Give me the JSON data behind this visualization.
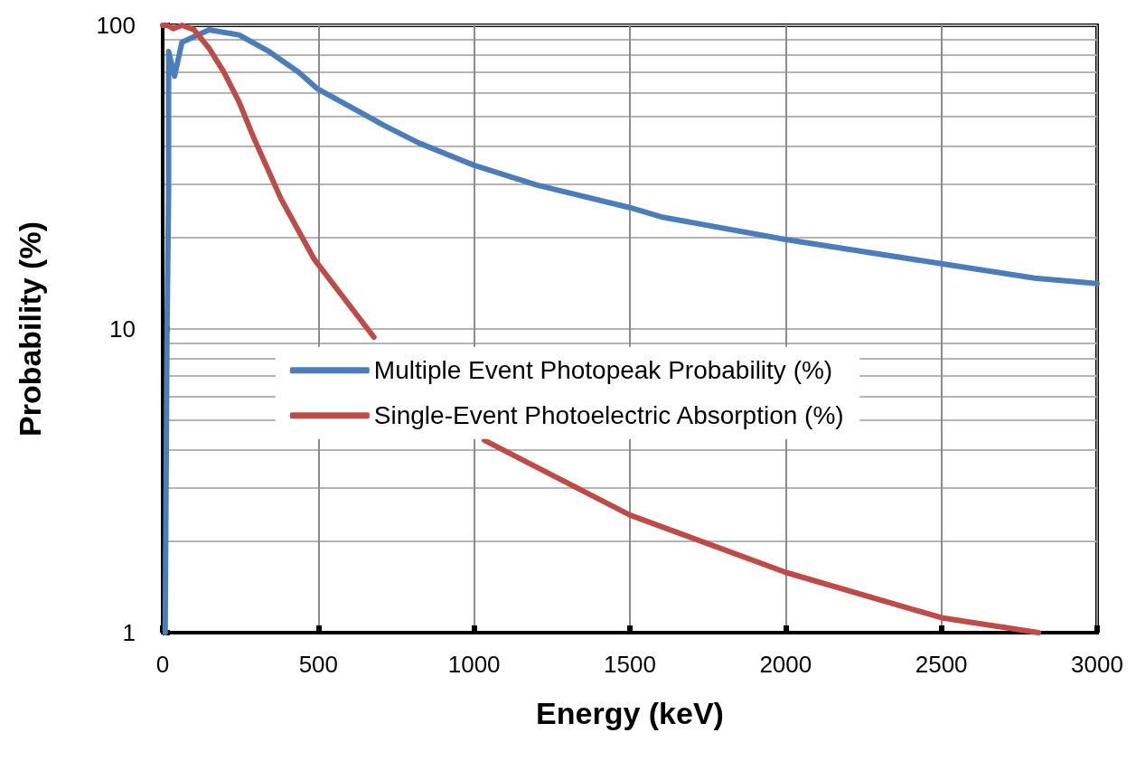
{
  "chart_data": {
    "type": "line",
    "xlabel": "Energy (keV)",
    "ylabel": "Probability (%)",
    "xlim": [
      0,
      3000
    ],
    "xticks": [
      0,
      500,
      1000,
      1500,
      2000,
      2500,
      3000
    ],
    "ylim": [
      1,
      100
    ],
    "yticks": [
      1,
      10,
      100
    ],
    "log": "y",
    "grid": true,
    "legend": "center",
    "marker": "none",
    "line_style": "solid",
    "series": [
      {
        "name": "Multiple Event Photopeak Probability (%)",
        "color": "#4a7ebb",
        "x": [
          8,
          14,
          19,
          19,
          38,
          62,
          149,
          245,
          341,
          437,
          495,
          630,
          707,
          822,
          1000,
          1200,
          1500,
          1600,
          2000,
          2500,
          2800,
          3000
        ],
        "values": [
          1,
          10,
          28,
          82,
          68,
          88,
          96.6,
          93,
          82,
          70,
          62,
          52,
          47,
          41,
          34.6,
          29.8,
          25.1,
          23.4,
          19.7,
          16.4,
          14.7,
          14.1
        ]
      },
      {
        "name": "Single-Event Photoelectric Absorption (%)",
        "color": "#be4b48",
        "x": [
          0,
          15,
          34,
          62,
          101,
          149,
          197,
          245,
          293,
          380,
          486,
          678,
          850,
          1033,
          1226,
          1500,
          2000,
          2500,
          2812
        ],
        "values": [
          100,
          100,
          97.5,
          100,
          96.6,
          84,
          70,
          56,
          42.5,
          26.8,
          17,
          9.4,
          null,
          4.3,
          3.4,
          2.44,
          1.58,
          1.12,
          1
        ]
      }
    ]
  }
}
